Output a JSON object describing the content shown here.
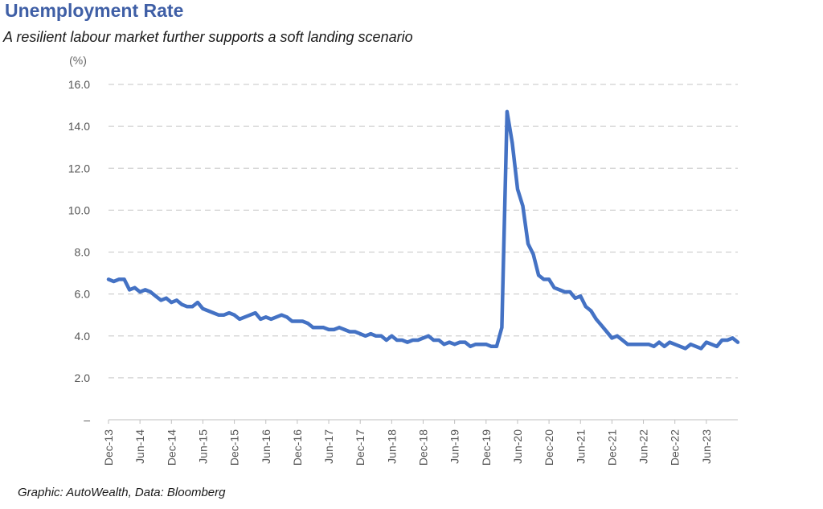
{
  "title": "Unemployment Rate",
  "subtitle": "A resilient labour market further supports a soft landing scenario",
  "source": "Graphic: AutoWealth, Data: Bloomberg",
  "chart_data": {
    "type": "line",
    "unit_label": "(%)",
    "ylim": [
      0,
      16
    ],
    "y_ticks": [
      0,
      2,
      4,
      6,
      8,
      10,
      12,
      14,
      16
    ],
    "y_tick_labels": [
      "–",
      "2.0",
      "4.0",
      "6.0",
      "8.0",
      "10.0",
      "12.0",
      "14.0",
      "16.0"
    ],
    "x_tick_labels": [
      "Dec-13",
      "Jun-14",
      "Dec-14",
      "Jun-15",
      "Dec-15",
      "Jun-16",
      "Dec-16",
      "Jun-17",
      "Dec-17",
      "Jun-18",
      "Dec-18",
      "Jun-19",
      "Dec-19",
      "Jun-20",
      "Dec-20",
      "Jun-21",
      "Dec-21",
      "Jun-22",
      "Dec-22",
      "Jun-23"
    ],
    "x_start": "Dec-13",
    "x_end": "Oct-23",
    "grid": true,
    "line_color": "#4472c4",
    "series": [
      {
        "values": [
          6.7,
          6.6,
          6.7,
          6.7,
          6.2,
          6.3,
          6.1,
          6.2,
          6.1,
          5.9,
          5.7,
          5.8,
          5.6,
          5.7,
          5.5,
          5.4,
          5.4,
          5.6,
          5.3,
          5.2,
          5.1,
          5.0,
          5.0,
          5.1,
          5.0,
          4.8,
          4.9,
          5.0,
          5.1,
          4.8,
          4.9,
          4.8,
          4.9,
          5.0,
          4.9,
          4.7,
          4.7,
          4.7,
          4.6,
          4.4,
          4.4,
          4.4,
          4.3,
          4.3,
          4.4,
          4.3,
          4.2,
          4.2,
          4.1,
          4.0,
          4.1,
          4.0,
          4.0,
          3.8,
          4.0,
          3.8,
          3.8,
          3.7,
          3.8,
          3.8,
          3.9,
          4.0,
          3.8,
          3.8,
          3.6,
          3.7,
          3.6,
          3.7,
          3.7,
          3.5,
          3.6,
          3.6,
          3.6,
          3.5,
          3.5,
          4.4,
          14.7,
          13.2,
          11.0,
          10.2,
          8.4,
          7.9,
          6.9,
          6.7,
          6.7,
          6.3,
          6.2,
          6.1,
          6.1,
          5.8,
          5.9,
          5.4,
          5.2,
          4.8,
          4.5,
          4.2,
          3.9,
          4.0,
          3.8,
          3.6,
          3.6,
          3.6,
          3.6,
          3.6,
          3.5,
          3.7,
          3.5,
          3.7,
          3.6,
          3.5,
          3.4,
          3.6,
          3.5,
          3.4,
          3.7,
          3.6,
          3.5,
          3.8,
          3.8,
          3.9,
          3.7
        ]
      }
    ]
  }
}
